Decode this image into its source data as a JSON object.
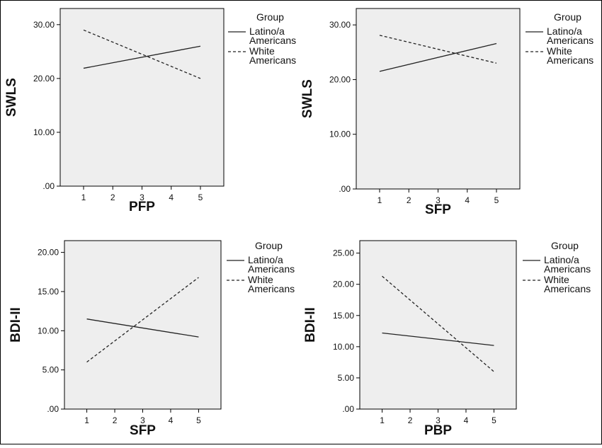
{
  "colors": {
    "plot_background": "#eeeeee",
    "axis": "#000000",
    "line": "#222222"
  },
  "chart_data": [
    {
      "type": "line",
      "xlabel": "PFP",
      "ylabel": "SWLS",
      "x": [
        1,
        2,
        3,
        4,
        5
      ],
      "x_ticks": [
        "1",
        "2",
        "3",
        "4",
        "5"
      ],
      "xlim": [
        0.2,
        5.8
      ],
      "ylim": [
        0,
        33
      ],
      "y_ticks": [
        0,
        10,
        20,
        30
      ],
      "y_tick_labels": [
        ".00",
        "10.00",
        "20.00",
        "30.00"
      ],
      "legend_title": "Group",
      "legend_position": "right",
      "series": [
        {
          "name": "Latino/a Americans",
          "name_lines": [
            "Latino/a",
            "Americans"
          ],
          "style": "solid",
          "x": [
            1,
            5
          ],
          "values": [
            21.9,
            26.0
          ]
        },
        {
          "name": "White Americans",
          "name_lines": [
            "White",
            "Americans"
          ],
          "style": "dashed",
          "x": [
            1,
            5
          ],
          "values": [
            29.0,
            20.0
          ]
        }
      ]
    },
    {
      "type": "line",
      "xlabel": "SFP",
      "ylabel": "SWLS",
      "x": [
        1,
        2,
        3,
        4,
        5
      ],
      "x_ticks": [
        "1",
        "2",
        "3",
        "4",
        "5"
      ],
      "xlim": [
        0.2,
        5.8
      ],
      "ylim": [
        0,
        33
      ],
      "y_ticks": [
        0,
        10,
        20,
        30
      ],
      "y_tick_labels": [
        ".00",
        "10.00",
        "20.00",
        "30.00"
      ],
      "legend_title": "Group",
      "legend_position": "right",
      "series": [
        {
          "name": "Latino/a Americans",
          "name_lines": [
            "Latino/a",
            "Americans"
          ],
          "style": "solid",
          "x": [
            1,
            5
          ],
          "values": [
            21.5,
            26.6
          ]
        },
        {
          "name": "White Americans",
          "name_lines": [
            "White",
            "Americans"
          ],
          "style": "dashed",
          "x": [
            1,
            5
          ],
          "values": [
            28.1,
            23.0
          ]
        }
      ]
    },
    {
      "type": "line",
      "xlabel": "SFP",
      "ylabel": "BDI-II",
      "x": [
        1,
        2,
        3,
        4,
        5
      ],
      "x_ticks": [
        "1",
        "2",
        "3",
        "4",
        "5"
      ],
      "xlim": [
        0.2,
        5.8
      ],
      "ylim": [
        0,
        21.5
      ],
      "y_ticks": [
        0,
        5,
        10,
        15,
        20
      ],
      "y_tick_labels": [
        ".00",
        "5.00",
        "10.00",
        "15.00",
        "20.00"
      ],
      "legend_title": "Group",
      "legend_position": "right",
      "series": [
        {
          "name": "Latino/a Americans",
          "name_lines": [
            "Latino/a",
            "Americans"
          ],
          "style": "solid",
          "x": [
            1,
            5
          ],
          "values": [
            11.5,
            9.2
          ]
        },
        {
          "name": "White Americans",
          "name_lines": [
            "White",
            "Americans"
          ],
          "style": "dashed",
          "x": [
            1,
            5
          ],
          "values": [
            6.0,
            16.8
          ]
        }
      ]
    },
    {
      "type": "line",
      "xlabel": "PBP",
      "ylabel": "BDI-II",
      "x": [
        1,
        2,
        3,
        4,
        5
      ],
      "x_ticks": [
        "1",
        "2",
        "3",
        "4",
        "5"
      ],
      "xlim": [
        0.2,
        5.8
      ],
      "ylim": [
        0,
        27
      ],
      "y_ticks": [
        0,
        5,
        10,
        15,
        20,
        25
      ],
      "y_tick_labels": [
        ".00",
        "5.00",
        "10.00",
        "15.00",
        "20.00",
        "25.00"
      ],
      "legend_title": "Group",
      "legend_position": "right",
      "series": [
        {
          "name": "Latino/a Americans",
          "name_lines": [
            "Latino/a",
            "Americans"
          ],
          "style": "solid",
          "x": [
            1,
            5
          ],
          "values": [
            12.2,
            10.2
          ]
        },
        {
          "name": "White Americans",
          "name_lines": [
            "White",
            "Americans"
          ],
          "style": "dashed",
          "x": [
            1,
            5
          ],
          "values": [
            21.3,
            6.0
          ]
        }
      ]
    }
  ]
}
